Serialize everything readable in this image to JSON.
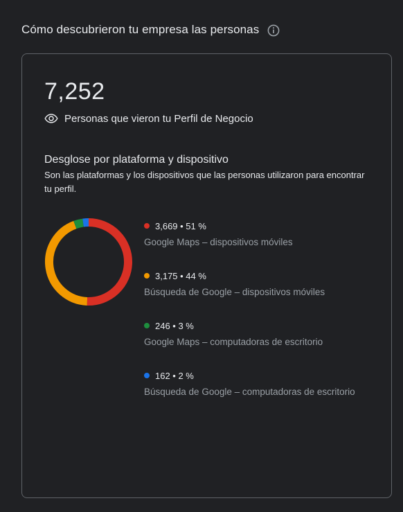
{
  "header": {
    "title": "Cómo descubrieron tu empresa las personas",
    "info_icon": "info-icon"
  },
  "summary": {
    "total": "7,252",
    "eye_icon": "eye-icon",
    "label": "Personas que vieron tu Perfil de Negocio"
  },
  "breakdown": {
    "title": "Desglose por plataforma y dispositivo",
    "description": "Son las plataformas y los dispositivos que las personas utilizaron para encontrar tu perfil."
  },
  "chart_data": {
    "type": "pie",
    "donut": true,
    "start_angle_deg": 0,
    "direction": "clockwise",
    "series": [
      {
        "value_text": "3,669 • 51 %",
        "value": 3669,
        "percent": 51,
        "name": "Google Maps – dispositivos móviles",
        "color": "#d93025"
      },
      {
        "value_text": "3,175 • 44 %",
        "value": 3175,
        "percent": 44,
        "name": "Búsqueda de Google – dispositivos móviles",
        "color": "#f29900"
      },
      {
        "value_text": "246 • 3 %",
        "value": 246,
        "percent": 3,
        "name": "Google Maps – computadoras de escritorio",
        "color": "#1e8e3e"
      },
      {
        "value_text": "162 • 2 %",
        "value": 162,
        "percent": 2,
        "name": "Búsqueda de Google – computadoras de escritorio",
        "color": "#1a73e8"
      }
    ]
  }
}
